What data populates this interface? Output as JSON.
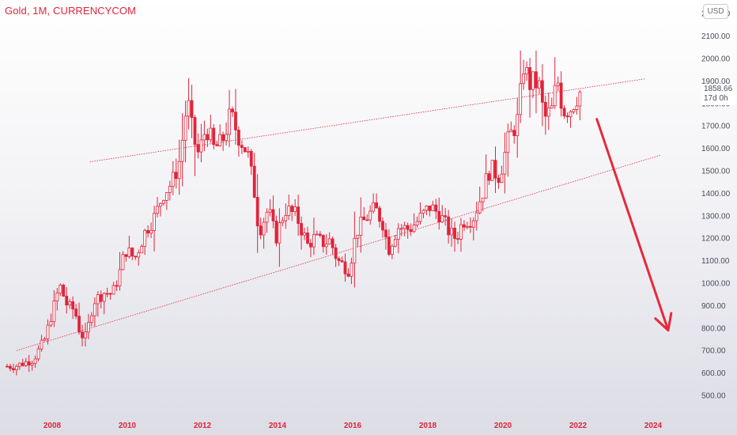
{
  "header": {
    "symbol_label": "Gold, 1M, CURRENCYCOM",
    "currency_button": "USD"
  },
  "price_tag": {
    "price": "1858.66",
    "countdown": "17d 0h"
  },
  "colors": {
    "candle": "#e0243a",
    "axis_text": "#4a4e5a",
    "year_text": "#e0243a",
    "trendline": "#e0243a",
    "arrow": "#e8283c"
  },
  "chart_data": {
    "type": "candlestick",
    "interval": "1M",
    "y_ticks": [
      "500.00",
      "600.00",
      "700.00",
      "800.00",
      "900.00",
      "1000.00",
      "1100.00",
      "1200.00",
      "1300.00",
      "1400.00",
      "1500.00",
      "1600.00",
      "1700.00",
      "1800.00",
      "1900.00",
      "2000.00",
      "2100.00",
      "2200.00"
    ],
    "x_ticks": [
      "2008",
      "2010",
      "2012",
      "2014",
      "2016",
      "2018",
      "2020",
      "2022",
      "2024"
    ],
    "ylim": [
      440,
      2270
    ],
    "xlim": [
      2006.75,
      2025.1
    ],
    "series": [
      {
        "t": 2007.0,
        "c": 630
      },
      {
        "t": 2007.5,
        "c": 660
      },
      {
        "t": 2007.8,
        "c": 750
      },
      {
        "t": 2008.1,
        "c": 930
      },
      {
        "t": 2008.2,
        "c": 990
      },
      {
        "t": 2008.4,
        "c": 900
      },
      {
        "t": 2008.6,
        "c": 880
      },
      {
        "t": 2008.75,
        "c": 770
      },
      {
        "t": 2008.9,
        "c": 760
      },
      {
        "t": 2009.1,
        "c": 920
      },
      {
        "t": 2009.4,
        "c": 960
      },
      {
        "t": 2009.6,
        "c": 950
      },
      {
        "t": 2009.8,
        "c": 1050
      },
      {
        "t": 2009.95,
        "c": 1150
      },
      {
        "t": 2010.2,
        "c": 1110
      },
      {
        "t": 2010.5,
        "c": 1240
      },
      {
        "t": 2010.75,
        "c": 1300
      },
      {
        "t": 2010.95,
        "c": 1400
      },
      {
        "t": 2011.2,
        "c": 1450
      },
      {
        "t": 2011.4,
        "c": 1550
      },
      {
        "t": 2011.6,
        "c": 1820
      },
      {
        "t": 2011.75,
        "c": 1650
      },
      {
        "t": 2011.9,
        "c": 1570
      },
      {
        "t": 2012.1,
        "c": 1700
      },
      {
        "t": 2012.3,
        "c": 1600
      },
      {
        "t": 2012.5,
        "c": 1620
      },
      {
        "t": 2012.75,
        "c": 1750
      },
      {
        "t": 2012.95,
        "c": 1660
      },
      {
        "t": 2013.2,
        "c": 1580
      },
      {
        "t": 2013.4,
        "c": 1390
      },
      {
        "t": 2013.5,
        "c": 1230
      },
      {
        "t": 2013.75,
        "c": 1330
      },
      {
        "t": 2013.95,
        "c": 1200
      },
      {
        "t": 2014.2,
        "c": 1330
      },
      {
        "t": 2014.5,
        "c": 1300
      },
      {
        "t": 2014.8,
        "c": 1170
      },
      {
        "t": 2014.95,
        "c": 1200
      },
      {
        "t": 2015.2,
        "c": 1180
      },
      {
        "t": 2015.4,
        "c": 1190
      },
      {
        "t": 2015.6,
        "c": 1100
      },
      {
        "t": 2015.9,
        "c": 1060
      },
      {
        "t": 2016.1,
        "c": 1230
      },
      {
        "t": 2016.4,
        "c": 1300
      },
      {
        "t": 2016.6,
        "c": 1330
      },
      {
        "t": 2016.8,
        "c": 1270
      },
      {
        "t": 2016.95,
        "c": 1150
      },
      {
        "t": 2017.2,
        "c": 1250
      },
      {
        "t": 2017.5,
        "c": 1240
      },
      {
        "t": 2017.75,
        "c": 1280
      },
      {
        "t": 2018.05,
        "c": 1340
      },
      {
        "t": 2018.3,
        "c": 1310
      },
      {
        "t": 2018.6,
        "c": 1220
      },
      {
        "t": 2018.75,
        "c": 1200
      },
      {
        "t": 2018.95,
        "c": 1280
      },
      {
        "t": 2019.2,
        "c": 1290
      },
      {
        "t": 2019.45,
        "c": 1400
      },
      {
        "t": 2019.65,
        "c": 1510
      },
      {
        "t": 2019.9,
        "c": 1480
      },
      {
        "t": 2020.15,
        "c": 1640
      },
      {
        "t": 2020.4,
        "c": 1730
      },
      {
        "t": 2020.55,
        "c": 1970
      },
      {
        "t": 2020.7,
        "c": 1890
      },
      {
        "t": 2020.95,
        "c": 1890
      },
      {
        "t": 2021.1,
        "c": 1730
      },
      {
        "t": 2021.3,
        "c": 1770
      },
      {
        "t": 2021.45,
        "c": 1910
      },
      {
        "t": 2021.6,
        "c": 1770
      },
      {
        "t": 2021.8,
        "c": 1780
      },
      {
        "t": 2021.95,
        "c": 1830
      },
      {
        "t": 2022.1,
        "c": 1860
      }
    ],
    "trendlines": [
      {
        "name": "upper",
        "points": [
          [
            2009.0,
            1540
          ],
          [
            2023.8,
            1910
          ]
        ]
      },
      {
        "name": "lower",
        "points": [
          [
            2007.05,
            700
          ],
          [
            2024.2,
            1570
          ]
        ]
      }
    ],
    "annotation": {
      "type": "arrow",
      "from": [
        2022.5,
        1730
      ],
      "to": [
        2024.4,
        790
      ]
    },
    "grid": false,
    "legend": "none"
  }
}
